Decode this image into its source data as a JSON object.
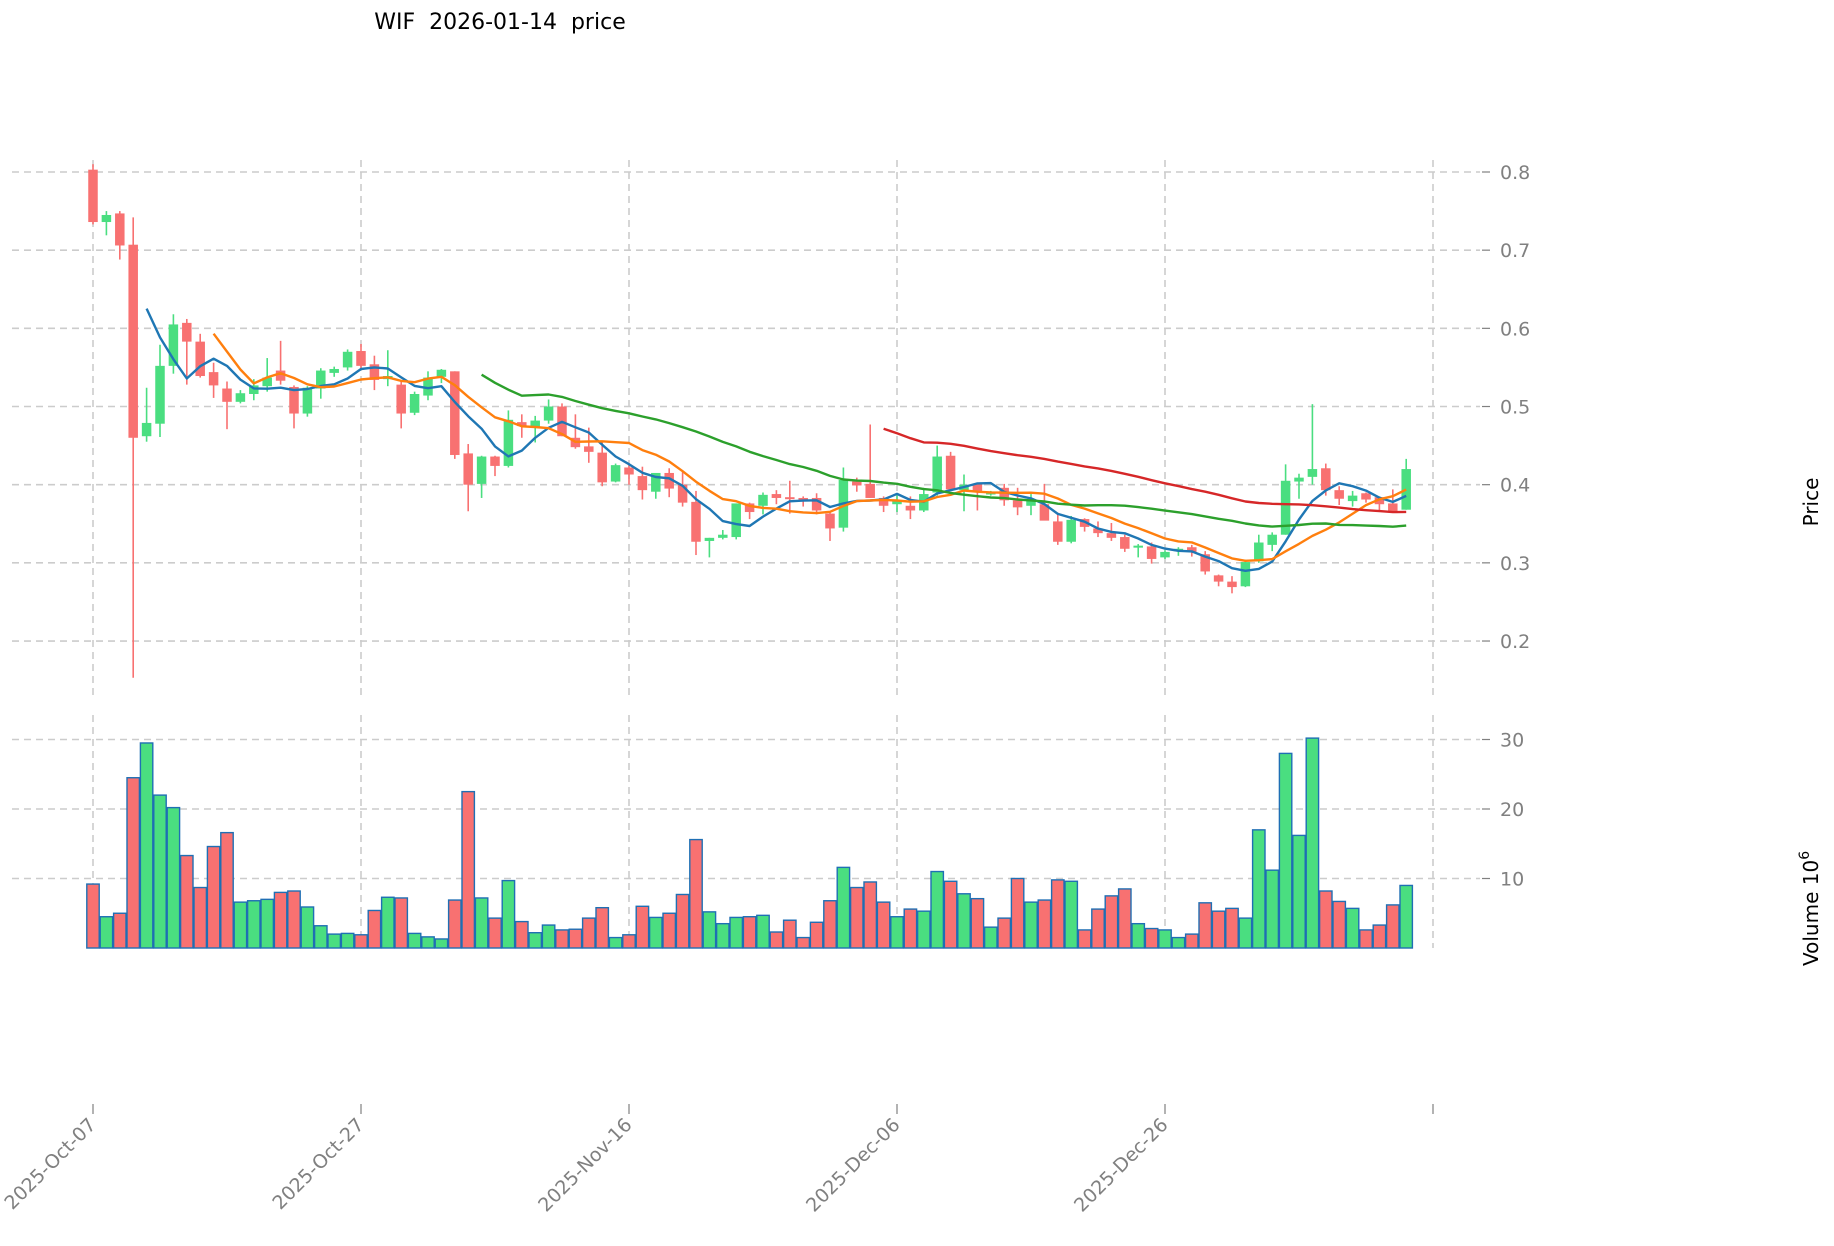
{
  "title": "WIF  2026-01-14  price",
  "chart_data": {
    "type": "candlestick",
    "title": "WIF  2026-01-14  price",
    "ticker": "WIF",
    "date": "2026-01-14",
    "price_panel": {
      "ylabel": "Price",
      "yticks": [
        0.2,
        0.3,
        0.4,
        0.5,
        0.6,
        0.7,
        0.8
      ],
      "ytick_labels": [
        "0.2",
        "0.3",
        "0.4",
        "0.5",
        "0.6",
        "0.7",
        "0.8"
      ],
      "ylim": [
        0.13,
        0.84
      ],
      "grid": true
    },
    "volume_panel": {
      "ylabel": "Volume  10^6",
      "yticks": [
        10,
        20,
        30
      ],
      "ytick_labels": [
        "10",
        "20",
        "30"
      ],
      "ylim": [
        0,
        31
      ],
      "grid": true
    },
    "xtick_labels": [
      "2025-Oct-07",
      "2025-Oct-27",
      "2025-Nov-16",
      "2025-Dec-06",
      "2025-Dec-26"
    ],
    "xtick_indices": [
      0,
      20,
      40,
      60,
      80
    ],
    "colors": {
      "up": "#4ade80",
      "down": "#f87171",
      "volume_edge": "#1f6fb4",
      "ma5": "#1f77b4",
      "ma10": "#ff7f0e",
      "ma30": "#2ca02c",
      "ma60": "#d62728",
      "grid": "#cccccc"
    },
    "moving_averages": [
      {
        "name": "MA5",
        "window": 5,
        "color": "#1f77b4"
      },
      {
        "name": "MA10",
        "window": 10,
        "color": "#ff7f0e"
      },
      {
        "name": "MA30",
        "window": 30,
        "color": "#2ca02c"
      },
      {
        "name": "MA60",
        "window": 60,
        "color": "#d62728"
      }
    ],
    "ohlcv": [
      [
        0.803,
        0.81,
        0.733,
        0.736,
        9.2
      ],
      [
        0.736,
        0.75,
        0.719,
        0.745,
        4.5
      ],
      [
        0.747,
        0.75,
        0.688,
        0.706,
        5.0
      ],
      [
        0.707,
        0.742,
        0.153,
        0.46,
        24.5
      ],
      [
        0.462,
        0.524,
        0.455,
        0.479,
        29.5
      ],
      [
        0.478,
        0.579,
        0.461,
        0.552,
        22.0
      ],
      [
        0.552,
        0.618,
        0.542,
        0.605,
        20.2
      ],
      [
        0.607,
        0.612,
        0.528,
        0.583,
        13.3
      ],
      [
        0.583,
        0.593,
        0.537,
        0.539,
        8.7
      ],
      [
        0.544,
        0.556,
        0.511,
        0.527,
        14.6
      ],
      [
        0.523,
        0.532,
        0.471,
        0.506,
        16.6
      ],
      [
        0.506,
        0.521,
        0.504,
        0.517,
        6.6
      ],
      [
        0.516,
        0.535,
        0.508,
        0.527,
        6.8
      ],
      [
        0.526,
        0.562,
        0.519,
        0.537,
        7.0
      ],
      [
        0.546,
        0.584,
        0.528,
        0.533,
        8.0
      ],
      [
        0.525,
        0.527,
        0.472,
        0.491,
        8.2
      ],
      [
        0.491,
        0.526,
        0.487,
        0.524,
        5.9
      ],
      [
        0.523,
        0.549,
        0.51,
        0.546,
        3.2
      ],
      [
        0.543,
        0.551,
        0.538,
        0.548,
        2.0
      ],
      [
        0.55,
        0.573,
        0.546,
        0.57,
        2.1
      ],
      [
        0.571,
        0.58,
        0.549,
        0.552,
        1.9
      ],
      [
        0.554,
        0.565,
        0.521,
        0.534,
        5.4
      ],
      [
        0.535,
        0.572,
        0.526,
        0.539,
        7.3
      ],
      [
        0.528,
        0.533,
        0.472,
        0.491,
        7.2
      ],
      [
        0.492,
        0.519,
        0.489,
        0.516,
        2.1
      ],
      [
        0.514,
        0.545,
        0.508,
        0.537,
        1.6
      ],
      [
        0.538,
        0.548,
        0.53,
        0.547,
        1.3
      ],
      [
        0.545,
        0.545,
        0.433,
        0.438,
        6.9
      ],
      [
        0.44,
        0.452,
        0.366,
        0.4,
        22.5
      ],
      [
        0.401,
        0.437,
        0.383,
        0.436,
        7.2
      ],
      [
        0.436,
        0.437,
        0.411,
        0.424,
        4.3
      ],
      [
        0.424,
        0.495,
        0.422,
        0.483,
        9.7
      ],
      [
        0.48,
        0.49,
        0.46,
        0.475,
        3.8
      ],
      [
        0.474,
        0.488,
        0.454,
        0.482,
        2.2
      ],
      [
        0.482,
        0.509,
        0.478,
        0.5,
        3.3
      ],
      [
        0.5,
        0.504,
        0.462,
        0.462,
        2.6
      ],
      [
        0.46,
        0.49,
        0.446,
        0.448,
        2.7
      ],
      [
        0.449,
        0.473,
        0.428,
        0.442,
        4.3
      ],
      [
        0.441,
        0.455,
        0.398,
        0.403,
        5.8
      ],
      [
        0.404,
        0.427,
        0.403,
        0.425,
        1.5
      ],
      [
        0.422,
        0.427,
        0.4,
        0.413,
        1.9
      ],
      [
        0.411,
        0.423,
        0.381,
        0.393,
        6.0
      ],
      [
        0.391,
        0.414,
        0.382,
        0.415,
        4.4
      ],
      [
        0.415,
        0.421,
        0.384,
        0.395,
        5.0
      ],
      [
        0.4,
        0.416,
        0.372,
        0.377,
        7.7
      ],
      [
        0.378,
        0.392,
        0.31,
        0.327,
        15.6
      ],
      [
        0.328,
        0.332,
        0.307,
        0.332,
        5.2
      ],
      [
        0.332,
        0.342,
        0.33,
        0.336,
        3.5
      ],
      [
        0.333,
        0.376,
        0.33,
        0.376,
        4.4
      ],
      [
        0.376,
        0.377,
        0.356,
        0.365,
        4.5
      ],
      [
        0.373,
        0.39,
        0.362,
        0.387,
        4.7
      ],
      [
        0.388,
        0.393,
        0.375,
        0.383,
        2.3
      ],
      [
        0.384,
        0.405,
        0.363,
        0.383,
        4.0
      ],
      [
        0.383,
        0.385,
        0.372,
        0.38,
        1.5
      ],
      [
        0.383,
        0.389,
        0.362,
        0.367,
        3.7
      ],
      [
        0.363,
        0.366,
        0.328,
        0.344,
        6.8
      ],
      [
        0.345,
        0.422,
        0.34,
        0.406,
        11.6
      ],
      [
        0.404,
        0.409,
        0.391,
        0.399,
        8.7
      ],
      [
        0.401,
        0.477,
        0.383,
        0.383,
        9.5
      ],
      [
        0.383,
        0.385,
        0.365,
        0.373,
        6.6
      ],
      [
        0.375,
        0.387,
        0.365,
        0.38,
        4.5
      ],
      [
        0.373,
        0.385,
        0.356,
        0.367,
        5.6
      ],
      [
        0.367,
        0.396,
        0.365,
        0.388,
        5.3
      ],
      [
        0.39,
        0.45,
        0.386,
        0.436,
        11.0
      ],
      [
        0.437,
        0.442,
        0.394,
        0.394,
        9.6
      ],
      [
        0.393,
        0.413,
        0.366,
        0.4,
        7.8
      ],
      [
        0.401,
        0.401,
        0.367,
        0.39,
        7.1
      ],
      [
        0.389,
        0.392,
        0.386,
        0.39,
        3.0
      ],
      [
        0.396,
        0.401,
        0.373,
        0.38,
        4.3
      ],
      [
        0.38,
        0.396,
        0.361,
        0.371,
        10.0
      ],
      [
        0.373,
        0.388,
        0.361,
        0.381,
        6.6
      ],
      [
        0.375,
        0.401,
        0.36,
        0.354,
        6.9
      ],
      [
        0.353,
        0.364,
        0.323,
        0.327,
        9.8
      ],
      [
        0.327,
        0.36,
        0.325,
        0.355,
        9.6
      ],
      [
        0.356,
        0.357,
        0.34,
        0.346,
        2.6
      ],
      [
        0.344,
        0.353,
        0.333,
        0.338,
        5.6
      ],
      [
        0.338,
        0.351,
        0.328,
        0.332,
        7.5
      ],
      [
        0.333,
        0.336,
        0.314,
        0.318,
        8.5
      ],
      [
        0.321,
        0.324,
        0.307,
        0.322,
        3.5
      ],
      [
        0.321,
        0.326,
        0.299,
        0.305,
        2.8
      ],
      [
        0.307,
        0.316,
        0.305,
        0.314,
        2.6
      ],
      [
        0.315,
        0.32,
        0.309,
        0.318,
        1.5
      ],
      [
        0.32,
        0.323,
        0.308,
        0.314,
        2.0
      ],
      [
        0.311,
        0.315,
        0.285,
        0.289,
        6.5
      ],
      [
        0.284,
        0.285,
        0.27,
        0.276,
        5.3
      ],
      [
        0.276,
        0.283,
        0.261,
        0.269,
        5.7
      ],
      [
        0.27,
        0.304,
        0.269,
        0.301,
        4.3
      ],
      [
        0.302,
        0.336,
        0.3,
        0.326,
        17.0
      ],
      [
        0.323,
        0.339,
        0.315,
        0.336,
        11.2
      ],
      [
        0.336,
        0.426,
        0.336,
        0.405,
        28.0
      ],
      [
        0.404,
        0.414,
        0.382,
        0.409,
        16.2
      ],
      [
        0.41,
        0.503,
        0.4,
        0.42,
        30.2
      ],
      [
        0.421,
        0.427,
        0.386,
        0.393,
        8.2
      ],
      [
        0.393,
        0.398,
        0.374,
        0.382,
        6.7
      ],
      [
        0.379,
        0.392,
        0.372,
        0.386,
        5.7
      ],
      [
        0.389,
        0.39,
        0.377,
        0.381,
        2.6
      ],
      [
        0.384,
        0.385,
        0.367,
        0.375,
        3.3
      ],
      [
        0.376,
        0.394,
        0.366,
        0.366,
        6.2
      ],
      [
        0.368,
        0.433,
        0.368,
        0.42,
        9.0
      ]
    ]
  }
}
